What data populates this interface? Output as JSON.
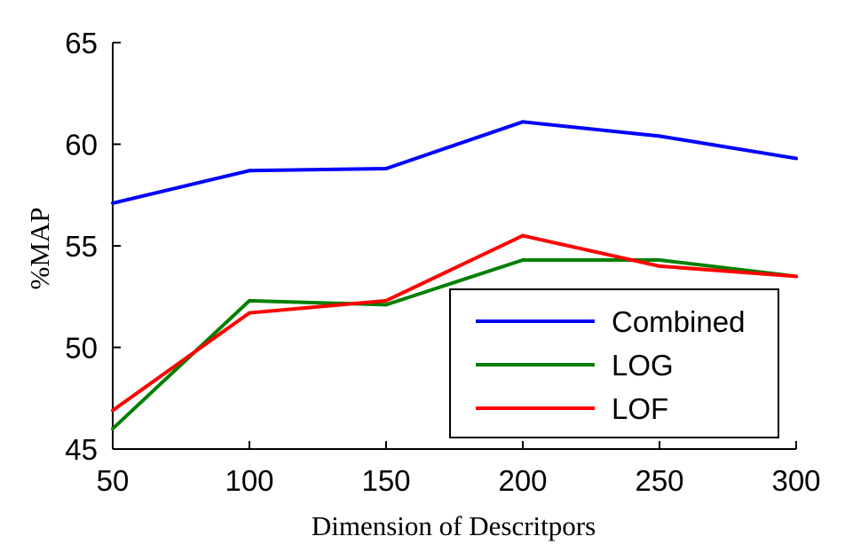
{
  "chart_data": {
    "type": "line",
    "title": "",
    "xlabel": "Dimension of Descritpors",
    "ylabel": "%MAP",
    "x": [
      50,
      100,
      150,
      200,
      250,
      300
    ],
    "xlim": [
      50,
      300
    ],
    "ylim": [
      45,
      65
    ],
    "xticks": [
      "50",
      "100",
      "150",
      "200",
      "250",
      "300"
    ],
    "yticks": [
      "45",
      "50",
      "55",
      "60",
      "65"
    ],
    "grid": false,
    "legend_position": "lower-right",
    "series": [
      {
        "name": "Combined",
        "color": "#0000ff",
        "values": [
          57.1,
          58.7,
          58.8,
          61.1,
          60.4,
          59.3
        ]
      },
      {
        "name": "LOG",
        "color": "#008000",
        "values": [
          46.0,
          52.3,
          52.1,
          54.3,
          54.3,
          53.5
        ]
      },
      {
        "name": "LOF",
        "color": "#ff0000",
        "values": [
          46.9,
          51.7,
          52.3,
          55.5,
          54.0,
          53.5
        ]
      }
    ]
  }
}
